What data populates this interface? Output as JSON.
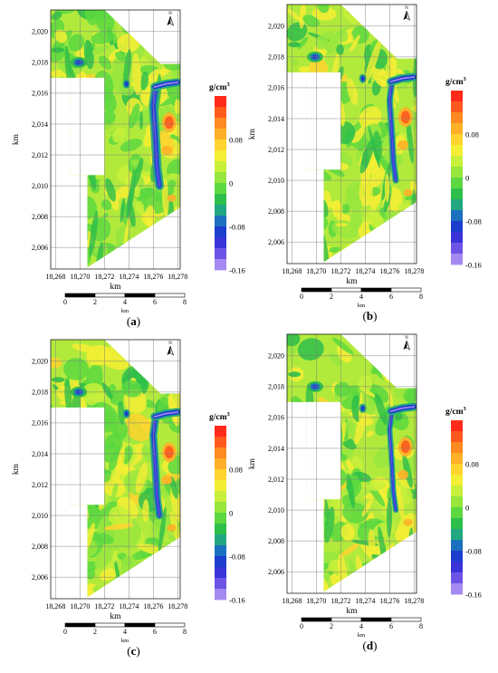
{
  "panels": [
    {
      "caption_open": "(",
      "caption_letter": "a",
      "caption_close": ")",
      "variant": 0
    },
    {
      "caption_open": "(",
      "caption_letter": "b",
      "caption_close": ")",
      "variant": 1
    },
    {
      "caption_open": "(",
      "caption_letter": "c",
      "caption_close": ")",
      "variant": 2
    },
    {
      "caption_open": "(",
      "caption_letter": "d",
      "caption_close": ")",
      "variant": 3
    }
  ],
  "map": {
    "x_ticks": [
      "18,268",
      "18,270",
      "18,272",
      "18,274",
      "18,276",
      "18,278"
    ],
    "y_ticks": [
      "2,020",
      "2,018",
      "2,016",
      "2,014",
      "2,012",
      "2,010",
      "2,008",
      "2,006"
    ],
    "x_label": "km",
    "y_label": "km",
    "north_label": "N",
    "x_range_km": [
      18267.6,
      18278.2
    ],
    "y_range_km": [
      2004.6,
      2021.4
    ]
  },
  "scale_bar": {
    "ticks": [
      "0",
      "2",
      "4",
      "6",
      "8"
    ],
    "unit": "km",
    "max_km": 8
  },
  "colorbar": {
    "unit_base": "g/cm",
    "unit_exp": "3",
    "labels": [
      "0.08",
      "0",
      "-0.08",
      "-0.16"
    ],
    "label_values": [
      0.08,
      0,
      -0.08,
      -0.16
    ],
    "range": [
      -0.16,
      0.16
    ],
    "colors": [
      "#ff2a1a",
      "#ff5a1e",
      "#ff8a22",
      "#ffb028",
      "#ffd42e",
      "#f4ee34",
      "#c8f03a",
      "#96e63e",
      "#5cd840",
      "#2ebe4a",
      "#22a880",
      "#1c70c0",
      "#1c3ecc",
      "#3a34d8",
      "#6e54e6",
      "#a48af0"
    ],
    "background_color": "#b2ea3c"
  }
}
